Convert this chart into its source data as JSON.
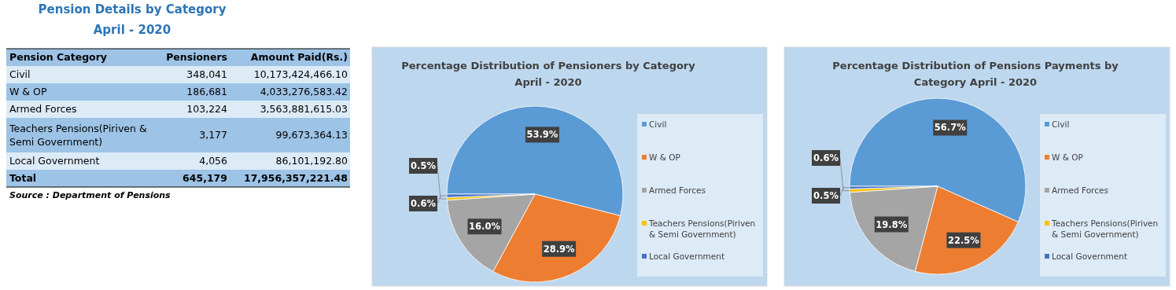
{
  "chart_data": [
    {
      "type": "other",
      "title": "Pension Details by  Category\nApril -  2020",
      "categories": [
        "Civil",
        "W & OP",
        "Armed Forces",
        "Teachers Pensions(Piriven & Semi Government)",
        "Local Government",
        "Total"
      ],
      "series": [
        {
          "name": "Pensioners",
          "colors": [
            "#ddebf7",
            "#9dc3e6",
            "#ddebf7",
            "#9dc3e6",
            "#ddebf7",
            "#9dc3e6"
          ],
          "values": [
            348041,
            186681,
            103224,
            3177,
            4056,
            645179
          ],
          "value_labels": [
            "348,041",
            "186,681",
            "103,224",
            "3,177",
            "4,056",
            "645,179"
          ]
        },
        {
          "name": "Amount Paid(Rs.)",
          "values": [
            10173424466.1,
            4033276583.42,
            3563881615.03,
            99673364.13,
            86101192.8,
            17956357221.48
          ],
          "value_labels": [
            "10,173,424,466.10",
            "4,033,276,583.42",
            "3,563,881,615.03",
            "99,673,364.13",
            "86,101,192.80",
            "17,956,357,221.48"
          ]
        }
      ],
      "annotations": [
        "Pension Category",
        "Source : Department of Pensions"
      ]
    },
    {
      "type": "pie",
      "title": "Percentage Distribution of Pensioners by Category\nApril - 2020",
      "categories": [
        "Civil",
        "W & OP",
        "Armed Forces",
        "Teachers Pensions(Piriven & Semi Government)",
        "Local Government"
      ],
      "values": [
        53.9,
        28.9,
        16.0,
        0.5,
        0.6
      ],
      "colors": [
        "#5b9bd5",
        "#ed7d31",
        "#a5a5a5",
        "#ffc000",
        "#4472c4"
      ],
      "value_labels": [
        "53.9%",
        "28.9%",
        "16.0%",
        "0.5%",
        "0.6%"
      ],
      "legend": "right"
    },
    {
      "type": "pie",
      "title": "Percentage Distribution of Pensions Payments by\nCategory April - 2020",
      "categories": [
        "Civil",
        "W & OP",
        "Armed Forces",
        "Teachers Pensions(Piriven & Semi Government)",
        "Local Government"
      ],
      "values": [
        56.7,
        22.5,
        19.8,
        0.6,
        0.5
      ],
      "colors": [
        "#5b9bd5",
        "#ed7d31",
        "#a5a5a5",
        "#ffc000",
        "#4472c4"
      ],
      "value_labels": [
        "56.7%",
        "22.5%",
        "19.8%",
        "0.6%",
        "0.5%"
      ],
      "legend": "right"
    }
  ]
}
